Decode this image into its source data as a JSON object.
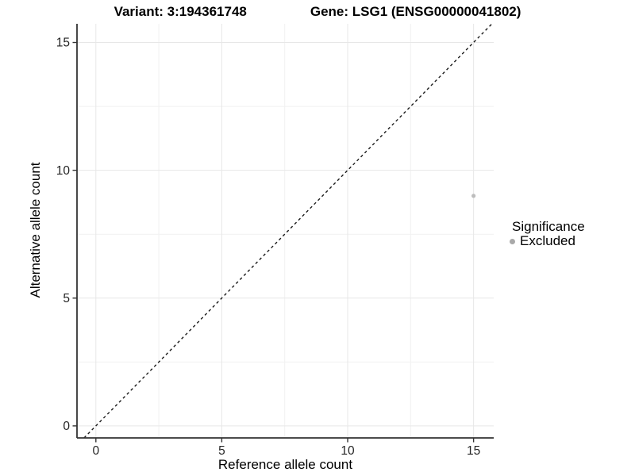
{
  "chart_data": {
    "type": "scatter",
    "title": {
      "variant": "Variant: 3:194361748",
      "gene": "Gene: LSG1 (ENSG00000041802)"
    },
    "xlabel": "Reference allele count",
    "ylabel": "Alternative allele count",
    "x_ticks": [
      0,
      5,
      10,
      15
    ],
    "y_ticks": [
      0,
      5,
      10,
      15
    ],
    "x_minor_gridlines": [
      2.5,
      7.5,
      12.5
    ],
    "y_minor_gridlines": [
      2.5,
      7.5,
      12.5
    ],
    "xlim": [
      -0.75,
      15.8
    ],
    "ylim": [
      -0.47,
      15.73
    ],
    "points": [
      {
        "x": 15,
        "y": 9,
        "significance": "Excluded"
      }
    ],
    "reference_line": {
      "kind": "identity",
      "slope": 1,
      "intercept": 0,
      "style": "dashed"
    },
    "legend": {
      "title": "Significance",
      "position": "right",
      "items": [
        {
          "label": "Excluded",
          "color": "#a9a9a9"
        }
      ]
    },
    "grid": {
      "major": true,
      "minor": true
    },
    "colors": {
      "point": "#bdbdbd",
      "grid_major": "#e7e7e7",
      "grid_minor": "#f1f1f1",
      "axis": "#333333",
      "dashed_line": "#1a1a1a",
      "background": "#ffffff",
      "text": "#000000",
      "tick_label": "#262626"
    }
  }
}
